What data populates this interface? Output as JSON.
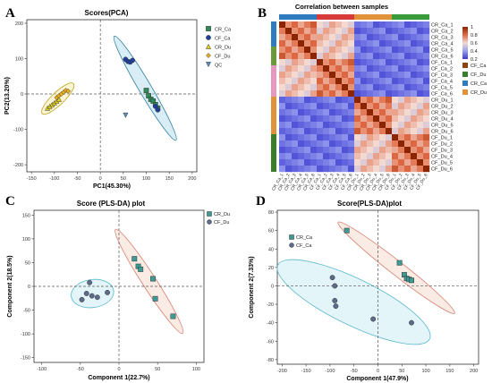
{
  "panels": [
    {
      "letter": "A"
    },
    {
      "letter": "B"
    },
    {
      "letter": "C"
    },
    {
      "letter": "D"
    }
  ],
  "chart_data": [
    {
      "id": "A",
      "type": "scatter",
      "title": "Scores(PCA)",
      "xlabel": "PC1(45.30%)",
      "ylabel": "PC2(13.20%)",
      "xlim": [
        -160,
        210
      ],
      "ylim": [
        -220,
        210
      ],
      "xticks": [
        -150,
        -100,
        -50,
        0,
        50,
        100,
        150,
        200
      ],
      "yticks": [
        -200,
        -100,
        0,
        100,
        200
      ],
      "legend_position": "top-right",
      "series": [
        {
          "name": "CR_Ca",
          "color": "#2e8b57",
          "marker": "square",
          "points": [
            [
              100,
              10
            ],
            [
              105,
              -5
            ],
            [
              110,
              -15
            ],
            [
              115,
              -20
            ],
            [
              120,
              -30
            ],
            [
              125,
              -40
            ]
          ]
        },
        {
          "name": "CF_Ca",
          "color": "#1f3f9e",
          "marker": "circle",
          "points": [
            [
              55,
              98
            ],
            [
              60,
              92
            ],
            [
              65,
              90
            ],
            [
              70,
              95
            ],
            [
              120,
              -35
            ],
            [
              125,
              -45
            ]
          ]
        },
        {
          "name": "CR_Du",
          "color": "#e6d31c",
          "marker": "triangle",
          "points": [
            [
              -115,
              -40
            ],
            [
              -110,
              -35
            ],
            [
              -105,
              -30
            ],
            [
              -100,
              -25
            ],
            [
              -95,
              -20
            ],
            [
              -90,
              -15
            ]
          ]
        },
        {
          "name": "CF_Du",
          "color": "#e8b020",
          "marker": "diamond",
          "points": [
            [
              -95,
              -10
            ],
            [
              -90,
              -5
            ],
            [
              -85,
              0
            ],
            [
              -80,
              5
            ],
            [
              -75,
              10
            ],
            [
              -70,
              8
            ]
          ]
        },
        {
          "name": "QC",
          "color": "#5a8fc7",
          "marker": "tri-down",
          "points": [
            [
              55,
              -60
            ]
          ]
        }
      ]
    },
    {
      "id": "B",
      "type": "heatmap",
      "title": "Correlation between samples",
      "labels": [
        "CR_Ca_1",
        "CR_Ca_2",
        "CR_Ca_3",
        "CR_Ca_4",
        "CR_Ca_5",
        "CR_Ca_6",
        "CF_Ca_1",
        "CF_Ca_2",
        "CF_Ca_3",
        "CF_Ca_4",
        "CF_Ca_5",
        "CF_Ca_6",
        "CR_Du_1",
        "CR_Du_2",
        "CR_Du_3",
        "CR_Du_4",
        "CR_Du_5",
        "CR_Du_6",
        "CF_Du_1",
        "CF_Du_2",
        "CF_Du_3",
        "CF_Du_4",
        "CF_Du_5",
        "CF_Du_6"
      ],
      "groups": [
        {
          "name": "CF_Ca",
          "color": "#8b4513"
        },
        {
          "name": "CF_Du",
          "color": "#3a7d2a"
        },
        {
          "name": "CR_Ca",
          "color": "#2f7bbf"
        },
        {
          "name": "CR_Du",
          "color": "#e0923a"
        }
      ],
      "col_groups_top": [
        "#2f7bbf",
        "#d83a3a",
        "#e0923a",
        "#3a9b3a"
      ],
      "row_groups_left": [
        "#2f7bbf",
        "#6b9a3a",
        "#e898c0",
        "#e0923a",
        "#3a7d2a"
      ],
      "colorbar": {
        "ticks": [
          "1",
          "0.8",
          "0.6",
          "0.4",
          "0.2"
        ],
        "colors": [
          "#8b2500",
          "#e06a45",
          "#f3d9cf",
          "#9aa0f0",
          "#3a3ad0"
        ]
      }
    },
    {
      "id": "C",
      "type": "scatter",
      "title": "Score (PLS-DA) plot",
      "xlabel": "Component 1(22.7%)",
      "ylabel": "Component 2(18.5%)",
      "xlim": [
        -110,
        110
      ],
      "ylim": [
        -160,
        160
      ],
      "xticks": [
        -100,
        -50,
        0,
        50,
        100
      ],
      "yticks": [
        -150,
        -100,
        -50,
        0,
        50,
        100,
        150
      ],
      "legend_position": "top-left",
      "series": [
        {
          "name": "CR_Du",
          "color": "#3d9a94",
          "marker": "square",
          "points": [
            [
              20,
              58
            ],
            [
              25,
              42
            ],
            [
              28,
              36
            ],
            [
              44,
              16
            ],
            [
              47,
              -26
            ],
            [
              70,
              -63
            ]
          ]
        },
        {
          "name": "CF_Du",
          "color": "#5c6b8a",
          "marker": "circle",
          "points": [
            [
              -48,
              -28
            ],
            [
              -42,
              -15
            ],
            [
              -38,
              8
            ],
            [
              -35,
              -20
            ],
            [
              -28,
              -23
            ],
            [
              -15,
              -13
            ]
          ]
        }
      ]
    },
    {
      "id": "D",
      "type": "scatter",
      "title": "Score(PLS-DA)plot",
      "xlabel": "Component 1(47.9%)",
      "ylabel": "Component 2(7.33%)",
      "xlim": [
        -210,
        210
      ],
      "ylim": [
        -85,
        82
      ],
      "xticks": [
        -200,
        -150,
        -100,
        -50,
        0,
        50,
        100,
        150,
        200
      ],
      "yticks": [
        -80,
        -60,
        -40,
        -20,
        0,
        20,
        40,
        60,
        80
      ],
      "legend_position": "top-left",
      "series": [
        {
          "name": "CR_Ca",
          "color": "#3d9a94",
          "marker": "square",
          "points": [
            [
              -65,
              60
            ],
            [
              45,
              25
            ],
            [
              55,
              12
            ],
            [
              60,
              8
            ],
            [
              65,
              7
            ],
            [
              70,
              6
            ]
          ]
        },
        {
          "name": "CF_Ca",
          "color": "#5c6b8a",
          "marker": "circle",
          "points": [
            [
              -95,
              9
            ],
            [
              -90,
              0
            ],
            [
              -90,
              -16
            ],
            [
              -88,
              -22
            ],
            [
              -10,
              -36
            ],
            [
              70,
              -40
            ]
          ]
        }
      ]
    }
  ]
}
